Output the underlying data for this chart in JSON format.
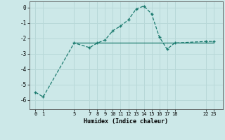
{
  "x": [
    0,
    1,
    5,
    7,
    8,
    9,
    10,
    11,
    12,
    13,
    14,
    15,
    16,
    17,
    18,
    22,
    23
  ],
  "y_curve": [
    -5.5,
    -5.8,
    -2.3,
    -2.6,
    -2.3,
    -2.1,
    -1.5,
    -1.2,
    -0.8,
    -0.1,
    0.1,
    -0.4,
    -1.9,
    -2.7,
    -2.3,
    -2.2,
    -2.2
  ],
  "x_hline_start": 5,
  "x_hline_end": 23,
  "y_hline": -2.3,
  "line_color": "#1a7a6e",
  "bg_color": "#cce8e8",
  "grid_color": "#b8d8d8",
  "xlabel": "Humidex (Indice chaleur)",
  "xtick_labels": [
    "0",
    "1",
    "5",
    "7",
    "8",
    "9",
    "10",
    "11",
    "12",
    "13",
    "14",
    "15",
    "16",
    "17",
    "18",
    "22",
    "23"
  ],
  "xtick_positions": [
    0,
    1,
    5,
    7,
    8,
    9,
    10,
    11,
    12,
    13,
    14,
    15,
    16,
    17,
    18,
    22,
    23
  ],
  "ytick_positions": [
    0,
    -1,
    -2,
    -3,
    -4,
    -5,
    -6
  ],
  "ytick_labels": [
    "0",
    "-1",
    "-2",
    "-3",
    "-4",
    "-5",
    "-6"
  ],
  "ylim": [
    -6.6,
    0.4
  ],
  "xlim": [
    -0.8,
    24.2
  ]
}
